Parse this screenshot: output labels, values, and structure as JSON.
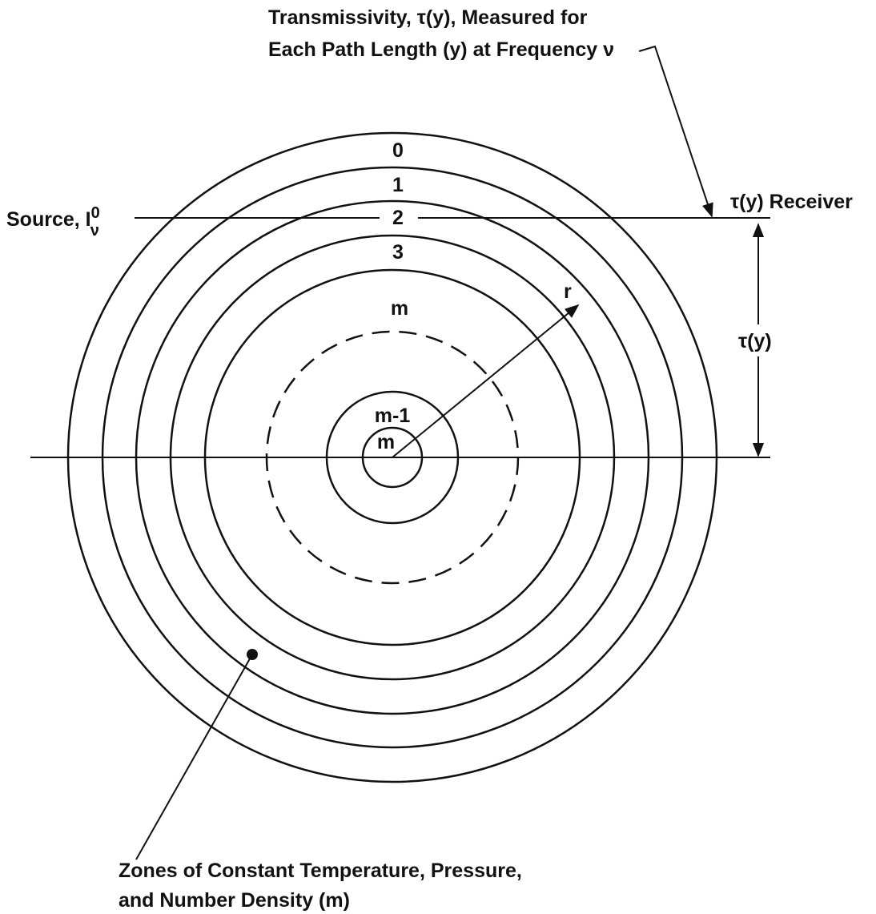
{
  "title": {
    "line1": "Transmissivity, τ(y), Measured for",
    "line2": "Each Path Length (y) at Frequency ν"
  },
  "receiver_label": "τ(y) Receiver",
  "source_label": {
    "text": "Source, I",
    "superscript": "0",
    "subscript": "ν"
  },
  "zone_labels": [
    "0",
    "1",
    "2",
    "3",
    "m",
    "m-1",
    "m"
  ],
  "radius_label": "r",
  "path_label": "τ(y)",
  "caption": {
    "line1": "Zones of Constant Temperature, Pressure,",
    "line2": "and Number Density (m)"
  }
}
